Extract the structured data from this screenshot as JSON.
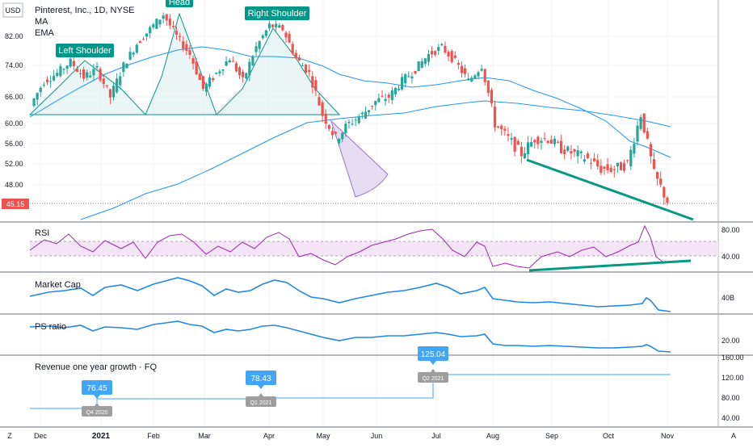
{
  "header": {
    "symbol_line": "Pinterest, Inc., 1D, NYSE",
    "ma_label": "MA",
    "ema_label": "EMA",
    "currency": "USD"
  },
  "price_axis": {
    "ticks": [
      {
        "label": "82.00",
        "value": 82
      },
      {
        "label": "74.00",
        "value": 74
      },
      {
        "label": "66.00",
        "value": 66
      },
      {
        "label": "60.00",
        "value": 60
      },
      {
        "label": "56.00",
        "value": 56
      },
      {
        "label": "52.00",
        "value": 52
      },
      {
        "label": "48.00",
        "value": 48
      }
    ],
    "last_price": "45.15"
  },
  "time_axis": [
    "Dec",
    "2021",
    "Feb",
    "Mar",
    "Apr",
    "May",
    "Jun",
    "Jul",
    "Aug",
    "Sep",
    "Oct",
    "Nov"
  ],
  "annotations": {
    "left_shoulder": "Left Shoulder",
    "head": "Head",
    "right_shoulder": "Right Shoulder"
  },
  "panes": {
    "rsi": {
      "title": "RSI",
      "ticks": [
        "80.00",
        "40.00"
      ]
    },
    "market_cap": {
      "title": "Market Cap",
      "ticks": [
        "40B"
      ]
    },
    "ps_ratio": {
      "title": "PS ratio",
      "ticks": [
        "20.00"
      ]
    },
    "revenue": {
      "title": "Revenue one year growth · FQ",
      "ticks": [
        "160.00",
        "120.00",
        "80.00",
        "40.00"
      ],
      "points": [
        {
          "value": "76.45",
          "quarter": "Q4 2020"
        },
        {
          "value": "78.43",
          "quarter": "Q1 2021"
        },
        {
          "value": "125.04",
          "quarter": "Q2 2021"
        }
      ]
    }
  },
  "corner_labels": {
    "left": "Z",
    "right": "A"
  },
  "chart_data": {
    "type": "candlestick",
    "title": "Pinterest, Inc., 1D, NYSE",
    "ylim": [
      42,
      90
    ],
    "last_close": 45.15,
    "pattern": "head and shoulders",
    "colors": {
      "up": "#26a69a",
      "down": "#ef5350",
      "ma": "#2196f3",
      "rsi": "#9c27b0",
      "trendline": "#089981"
    },
    "price_path": [
      {
        "x": "Nov 27",
        "close": 64
      },
      {
        "x": "Dec 7",
        "close": 70
      },
      {
        "x": "Dec 14",
        "close": 72
      },
      {
        "x": "Dec 21",
        "close": 75
      },
      {
        "x": "Dec 28",
        "close": 71
      },
      {
        "x": "Jan 5",
        "close": 73
      },
      {
        "x": "Jan 12",
        "close": 66
      },
      {
        "x": "Jan 20",
        "close": 74
      },
      {
        "x": "Jan 27",
        "close": 80
      },
      {
        "x": "Feb 3",
        "close": 84
      },
      {
        "x": "Feb 10",
        "close": 88
      },
      {
        "x": "Feb 17",
        "close": 82
      },
      {
        "x": "Feb 24",
        "close": 77
      },
      {
        "x": "Mar 3",
        "close": 68
      },
      {
        "x": "Mar 10",
        "close": 72
      },
      {
        "x": "Mar 17",
        "close": 76
      },
      {
        "x": "Mar 24",
        "close": 70
      },
      {
        "x": "Mar 31",
        "close": 79
      },
      {
        "x": "Apr 7",
        "close": 85
      },
      {
        "x": "Apr 14",
        "close": 84
      },
      {
        "x": "Apr 21",
        "close": 76
      },
      {
        "x": "Apr 28",
        "close": 72
      },
      {
        "x": "May 5",
        "close": 62
      },
      {
        "x": "May 12",
        "close": 57
      },
      {
        "x": "May 19",
        "close": 60
      },
      {
        "x": "May 26",
        "close": 62
      },
      {
        "x": "Jun 2",
        "close": 65
      },
      {
        "x": "Jun 9",
        "close": 66
      },
      {
        "x": "Jun 16",
        "close": 70
      },
      {
        "x": "Jun 23",
        "close": 73
      },
      {
        "x": "Jun 30",
        "close": 77
      },
      {
        "x": "Jul 7",
        "close": 79
      },
      {
        "x": "Jul 14",
        "close": 75
      },
      {
        "x": "Jul 21",
        "close": 70
      },
      {
        "x": "Jul 28",
        "close": 74
      },
      {
        "x": "Aug 4",
        "close": 60
      },
      {
        "x": "Aug 11",
        "close": 57
      },
      {
        "x": "Aug 18",
        "close": 54
      },
      {
        "x": "Aug 25",
        "close": 57
      },
      {
        "x": "Sep 1",
        "close": 57
      },
      {
        "x": "Sep 8",
        "close": 55
      },
      {
        "x": "Sep 15",
        "close": 54
      },
      {
        "x": "Sep 22",
        "close": 53
      },
      {
        "x": "Sep 29",
        "close": 51
      },
      {
        "x": "Oct 6",
        "close": 51
      },
      {
        "x": "Oct 13",
        "close": 52
      },
      {
        "x": "Oct 20",
        "close": 62
      },
      {
        "x": "Oct 27",
        "close": 50
      },
      {
        "x": "Nov 1",
        "close": 45.15
      }
    ]
  }
}
